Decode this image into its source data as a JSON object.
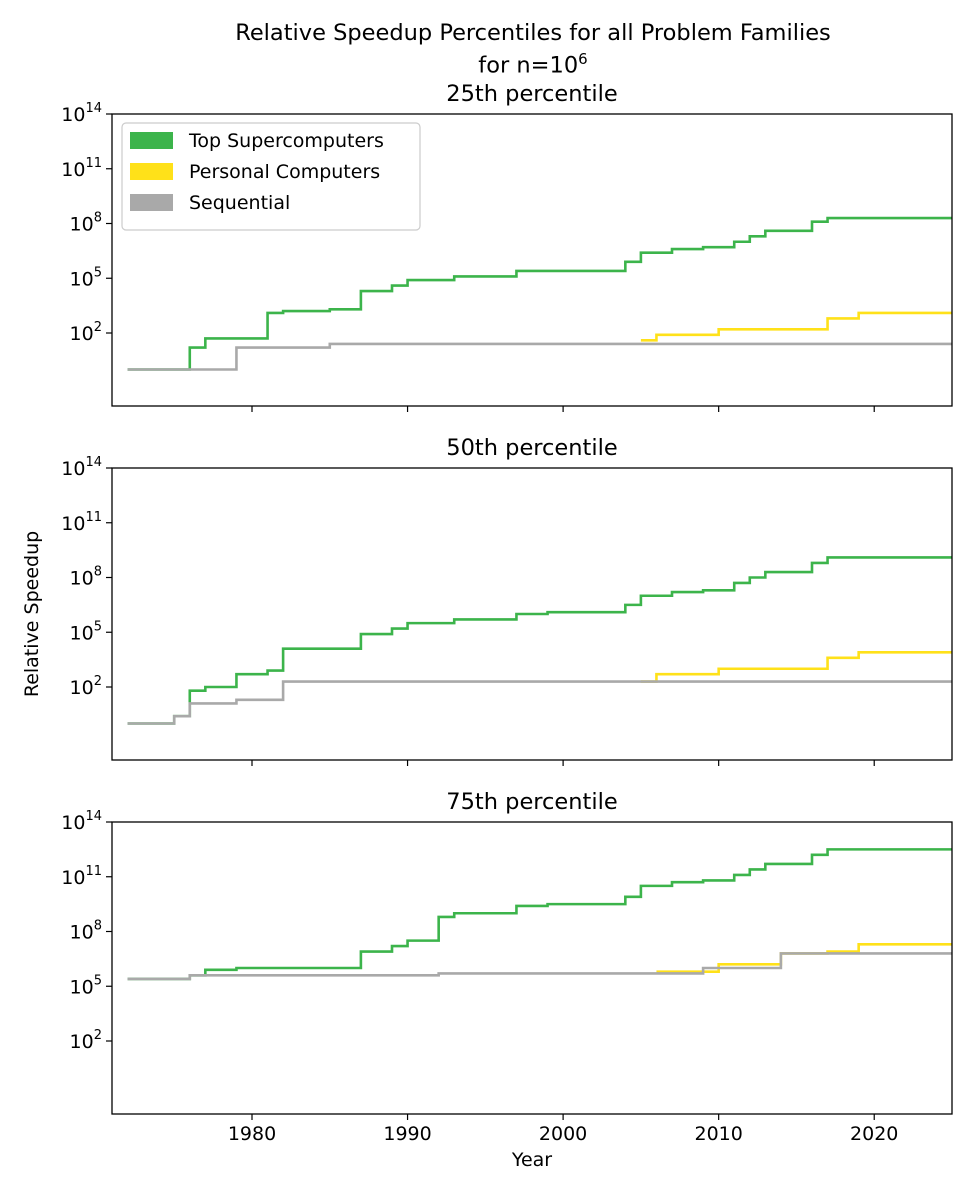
{
  "figure": {
    "title_line1": "Relative Speedup Percentiles for all Problem Families",
    "title_line2_prefix": "for n=10",
    "title_line2_exp": "6",
    "xlabel": "Year",
    "ylabel": "Relative Speedup"
  },
  "chart_data": [
    {
      "type": "line",
      "title": "25th percentile",
      "xlim": [
        1971,
        2025
      ],
      "ylim_log10": [
        -2,
        14
      ],
      "y_scale": "log",
      "legend": {
        "placement": "top-left",
        "items": [
          {
            "name": "Top Supercomputers",
            "color": "#3cb44b"
          },
          {
            "name": "Personal Computers",
            "color": "#ffe119"
          },
          {
            "name": "Sequential",
            "color": "#a9a9a9"
          }
        ]
      },
      "series": [
        {
          "name": "Top Supercomputers",
          "color": "#3cb44b",
          "steps": [
            [
              1972,
              0
            ],
            [
              1976,
              1.2
            ],
            [
              1977,
              1.7
            ],
            [
              1981,
              3.1
            ],
            [
              1982,
              3.2
            ],
            [
              1985,
              3.3
            ],
            [
              1987,
              4.3
            ],
            [
              1989,
              4.6
            ],
            [
              1990,
              4.9
            ],
            [
              1993,
              5.1
            ],
            [
              1997,
              5.4
            ],
            [
              2004,
              5.6
            ],
            [
              2004,
              5.9
            ],
            [
              2005,
              6.4
            ],
            [
              2007,
              6.6
            ],
            [
              2009,
              6.7
            ],
            [
              2011,
              7.0
            ],
            [
              2012,
              7.3
            ],
            [
              2013,
              7.6
            ],
            [
              2016,
              8.1
            ],
            [
              2017,
              8.3
            ],
            [
              2025,
              8.3
            ]
          ]
        },
        {
          "name": "Personal Computers",
          "color": "#ffe119",
          "steps": [
            [
              2005,
              1.6
            ],
            [
              2006,
              1.9
            ],
            [
              2010,
              2.2
            ],
            [
              2017,
              2.8
            ],
            [
              2019,
              3.1
            ],
            [
              2025,
              3.1
            ]
          ]
        },
        {
          "name": "Sequential",
          "color": "#a9a9a9",
          "steps": [
            [
              1972,
              0
            ],
            [
              1979,
              1.2
            ],
            [
              1985,
              1.4
            ],
            [
              2025,
              1.4
            ]
          ]
        }
      ]
    },
    {
      "type": "line",
      "title": "50th percentile",
      "xlim": [
        1971,
        2025
      ],
      "ylim_log10": [
        -2,
        14
      ],
      "y_scale": "log",
      "ylabel": "Relative Speedup",
      "series": [
        {
          "name": "Top Supercomputers",
          "color": "#3cb44b",
          "steps": [
            [
              1972,
              0
            ],
            [
              1975,
              0.4
            ],
            [
              1976,
              1.8
            ],
            [
              1977,
              2.0
            ],
            [
              1979,
              2.7
            ],
            [
              1981,
              2.9
            ],
            [
              1982,
              4.1
            ],
            [
              1987,
              4.9
            ],
            [
              1989,
              5.2
            ],
            [
              1990,
              5.5
            ],
            [
              1993,
              5.7
            ],
            [
              1997,
              6.0
            ],
            [
              1999,
              6.1
            ],
            [
              2004,
              6.5
            ],
            [
              2005,
              7.0
            ],
            [
              2007,
              7.2
            ],
            [
              2009,
              7.3
            ],
            [
              2011,
              7.7
            ],
            [
              2012,
              8.0
            ],
            [
              2013,
              8.3
            ],
            [
              2016,
              8.8
            ],
            [
              2017,
              9.1
            ],
            [
              2025,
              9.1
            ]
          ]
        },
        {
          "name": "Personal Computers",
          "color": "#ffe119",
          "steps": [
            [
              2005,
              2.3
            ],
            [
              2006,
              2.7
            ],
            [
              2010,
              3.0
            ],
            [
              2017,
              3.6
            ],
            [
              2019,
              3.9
            ],
            [
              2025,
              3.9
            ]
          ]
        },
        {
          "name": "Sequential",
          "color": "#a9a9a9",
          "steps": [
            [
              1972,
              0
            ],
            [
              1975,
              0.4
            ],
            [
              1976,
              1.1
            ],
            [
              1979,
              1.3
            ],
            [
              1980,
              1.3
            ],
            [
              1982,
              2.3
            ],
            [
              2025,
              2.3
            ]
          ]
        }
      ]
    },
    {
      "type": "line",
      "title": "75th percentile",
      "xlim": [
        1971,
        2025
      ],
      "ylim_log10": [
        -2,
        14
      ],
      "y_scale": "log",
      "xticks": [
        1980,
        1990,
        2000,
        2010,
        2020
      ],
      "xlabel": "Year",
      "series": [
        {
          "name": "Top Supercomputers",
          "color": "#3cb44b",
          "steps": [
            [
              1972,
              5.4
            ],
            [
              1976,
              5.6
            ],
            [
              1977,
              5.9
            ],
            [
              1979,
              6.0
            ],
            [
              1987,
              6.9
            ],
            [
              1989,
              7.2
            ],
            [
              1990,
              7.5
            ],
            [
              1992,
              8.8
            ],
            [
              1993,
              9.0
            ],
            [
              1997,
              9.4
            ],
            [
              1999,
              9.5
            ],
            [
              2004,
              9.9
            ],
            [
              2005,
              10.5
            ],
            [
              2007,
              10.7
            ],
            [
              2009,
              10.8
            ],
            [
              2011,
              11.1
            ],
            [
              2012,
              11.4
            ],
            [
              2013,
              11.7
            ],
            [
              2016,
              12.2
            ],
            [
              2017,
              12.5
            ],
            [
              2025,
              12.5
            ]
          ]
        },
        {
          "name": "Personal Computers",
          "color": "#ffe119",
          "steps": [
            [
              2006,
              5.8
            ],
            [
              2010,
              6.2
            ],
            [
              2014,
              6.8
            ],
            [
              2017,
              6.9
            ],
            [
              2019,
              7.3
            ],
            [
              2025,
              7.3
            ]
          ]
        },
        {
          "name": "Sequential",
          "color": "#a9a9a9",
          "steps": [
            [
              1972,
              5.4
            ],
            [
              1976,
              5.6
            ],
            [
              1992,
              5.7
            ],
            [
              2009,
              6.0
            ],
            [
              2014,
              6.8
            ],
            [
              2025,
              6.8
            ]
          ]
        }
      ]
    }
  ]
}
